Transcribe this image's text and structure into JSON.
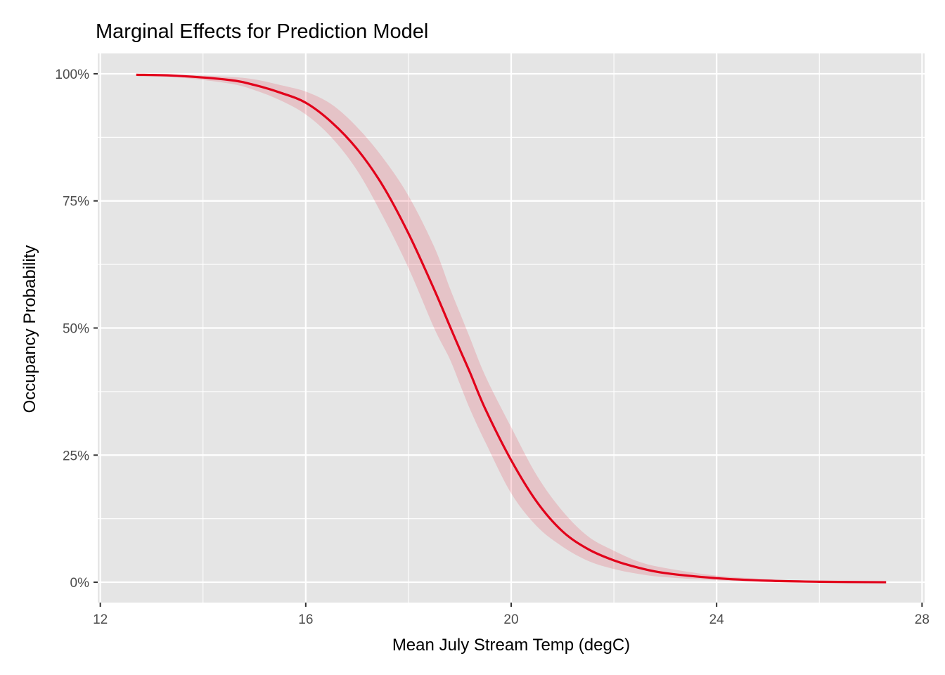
{
  "chart_data": {
    "type": "line",
    "title": "Marginal Effects for Prediction Model",
    "xlabel": "Mean July Stream Temp (degC)",
    "ylabel": "Occupancy Probability",
    "xlim": [
      11.95,
      28.05
    ],
    "ylim": [
      -0.04,
      1.04
    ],
    "x_ticks": [
      12,
      16,
      20,
      24,
      28
    ],
    "x_tick_labels": [
      "12",
      "16",
      "20",
      "24",
      "28"
    ],
    "y_ticks": [
      0,
      0.25,
      0.5,
      0.75,
      1.0
    ],
    "y_tick_labels": [
      "0%",
      "25%",
      "50%",
      "75%",
      "100%"
    ],
    "grid": true,
    "legend": "none",
    "series": [
      {
        "x": [
          12.7,
          13.5,
          14.5,
          15.0,
          15.5,
          16.0,
          16.5,
          17.0,
          17.5,
          18.0,
          18.5,
          18.8,
          19.0,
          19.2,
          19.5,
          20.0,
          20.5,
          21.0,
          21.5,
          22.0,
          22.5,
          23.0,
          24.0,
          25.0,
          26.0,
          27.3
        ],
        "y": [
          0.998,
          0.996,
          0.988,
          0.978,
          0.963,
          0.943,
          0.905,
          0.852,
          0.78,
          0.686,
          0.576,
          0.505,
          0.458,
          0.412,
          0.34,
          0.24,
          0.158,
          0.1,
          0.065,
          0.043,
          0.028,
          0.018,
          0.008,
          0.003,
          0.001,
          0.0
        ],
        "lower": [
          0.997,
          0.993,
          0.981,
          0.968,
          0.948,
          0.92,
          0.875,
          0.81,
          0.72,
          0.618,
          0.5,
          0.44,
          0.39,
          0.34,
          0.275,
          0.175,
          0.11,
          0.07,
          0.042,
          0.026,
          0.016,
          0.01,
          0.004,
          0.001,
          0.0,
          0.0
        ],
        "upper": [
          0.999,
          0.998,
          0.994,
          0.989,
          0.978,
          0.965,
          0.94,
          0.895,
          0.835,
          0.76,
          0.66,
          0.58,
          0.53,
          0.48,
          0.405,
          0.305,
          0.21,
          0.14,
          0.09,
          0.062,
          0.04,
          0.028,
          0.013,
          0.006,
          0.002,
          0.001
        ]
      }
    ],
    "colors": {
      "line": "#e2001a",
      "ribbon": "#e2001a",
      "panel": "#e5e5e5",
      "grid": "#ffffff",
      "tick": "#333333"
    }
  }
}
